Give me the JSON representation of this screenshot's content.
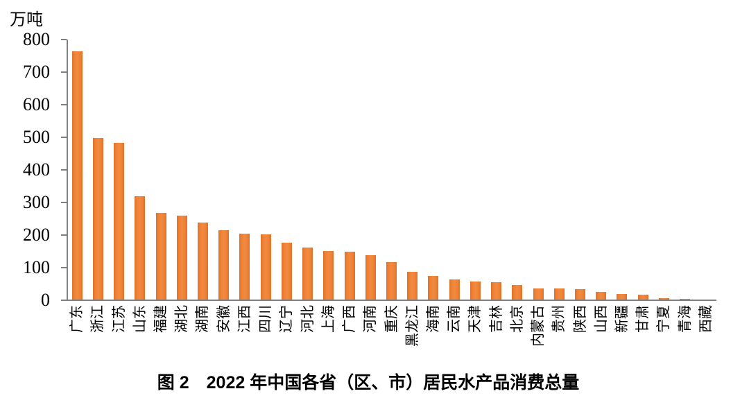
{
  "figure": {
    "unit_label": "万吨",
    "caption": "图 2　2022 年中国各省（区、市）居民水产品消费总量"
  },
  "chart_data": {
    "type": "bar",
    "title": "图 2 2022 年中国各省（区、市）居民水产品消费总量",
    "ylabel": "万吨",
    "xlabel": "",
    "categories": [
      "广东",
      "浙江",
      "江苏",
      "山东",
      "福建",
      "湖北",
      "湖南",
      "安徽",
      "江西",
      "四川",
      "辽宁",
      "河北",
      "上海",
      "广西",
      "河南",
      "重庆",
      "黑龙江",
      "海南",
      "云南",
      "天津",
      "吉林",
      "北京",
      "内蒙古",
      "贵州",
      "陕西",
      "山西",
      "新疆",
      "甘肃",
      "宁夏",
      "青海",
      "西藏"
    ],
    "values": [
      762,
      495,
      481,
      316,
      266,
      258,
      237,
      213,
      203,
      200,
      174,
      160,
      150,
      147,
      136,
      115,
      85,
      73,
      62,
      55,
      53,
      45,
      34,
      33,
      31,
      23,
      18,
      14,
      4,
      2,
      1
    ],
    "ylim": [
      0,
      800
    ],
    "ytick_interval": 100,
    "yticks": [
      0,
      100,
      200,
      300,
      400,
      500,
      600,
      700,
      800
    ],
    "grid": false,
    "legend_position": "none",
    "bar_color": "#ED7D31",
    "axis_color": "#7F7F7F",
    "text_color": "#000000"
  }
}
